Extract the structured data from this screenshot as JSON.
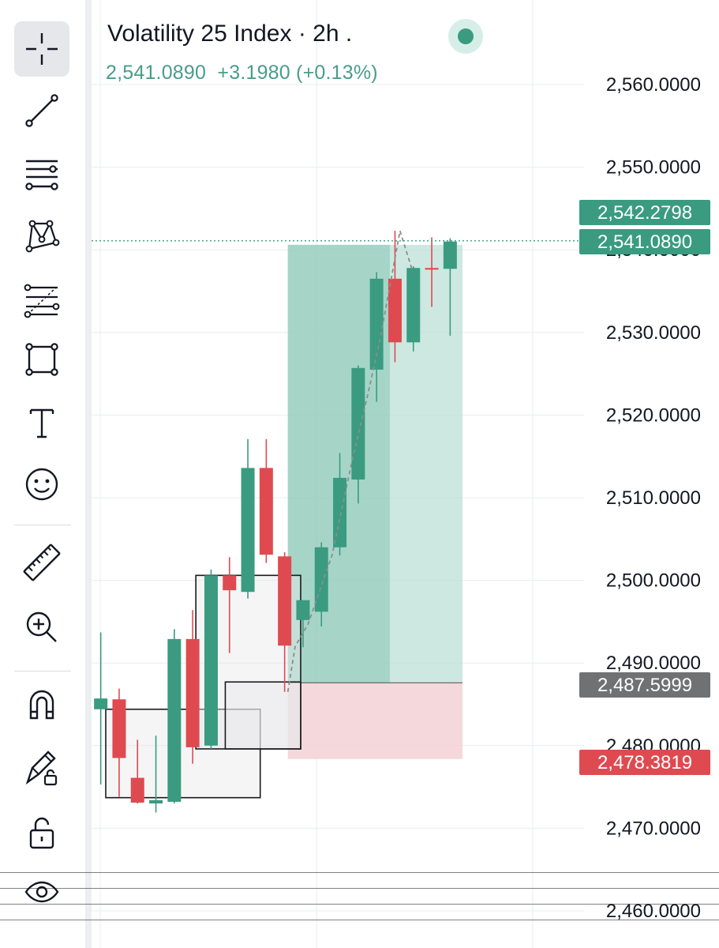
{
  "legend": {
    "symbol": "Volatility 25 Index",
    "interval": "2h",
    "last": "2,541.0890",
    "change": "+3.1980",
    "change_pct": "(+0.13%)"
  },
  "toolbar": {
    "items": [
      {
        "name": "crosshair-icon",
        "active": true
      },
      {
        "name": "trend-line-icon"
      },
      {
        "name": "horizontal-lines-icon"
      },
      {
        "name": "pattern-icon"
      },
      {
        "name": "fib-retracement-icon"
      },
      {
        "name": "rectangle-icon"
      },
      {
        "name": "text-tool-icon"
      },
      {
        "name": "emoji-icon"
      },
      {
        "name": "ruler-icon"
      },
      {
        "name": "zoom-in-icon"
      },
      {
        "name": "magnet-icon"
      },
      {
        "name": "lock-drawings-icon"
      },
      {
        "name": "unlock-icon"
      },
      {
        "name": "eye-icon"
      }
    ]
  },
  "colors": {
    "up": "#3a9b80",
    "down": "#df4a50",
    "target_zone": "#b6ddd3",
    "stop_zone": "#f4d4d7",
    "grid": "#eaecef",
    "last_price_tag": "#3a9b80",
    "entry_tag": "#6f7172",
    "stop_tag": "#df4a50"
  },
  "chart_data": {
    "type": "candlestick",
    "y_axis": {
      "min": 2458.5,
      "max": 2568.5,
      "ticks": [
        "2,560.0000",
        "2,550.0000",
        "2,540.0000",
        "2,530.0000",
        "2,520.0000",
        "2,510.0000",
        "2,500.0000",
        "2,490.0000",
        "2,480.0000",
        "2,470.0000",
        "2,460.0000"
      ],
      "tick_values": [
        2560,
        2550,
        2540,
        2530,
        2520,
        2510,
        2500,
        2490,
        2480,
        2470,
        2460
      ]
    },
    "price_tags": [
      {
        "label": "2,542.2798",
        "value": 2542.2798,
        "kind": "high"
      },
      {
        "label": "2,541.0890",
        "value": 2541.089,
        "kind": "last"
      },
      {
        "label": "2,487.5999",
        "value": 2487.5999,
        "kind": "entry"
      },
      {
        "label": "2,478.3819",
        "value": 2478.3819,
        "kind": "stop"
      }
    ],
    "candles": [
      {
        "o": 2484.4,
        "h": 2493.7,
        "l": 2475.3,
        "c": 2485.7
      },
      {
        "o": 2485.6,
        "h": 2486.9,
        "l": 2473.8,
        "c": 2478.5
      },
      {
        "o": 2476.1,
        "h": 2480.7,
        "l": 2473.0,
        "c": 2473.1
      },
      {
        "o": 2473.0,
        "h": 2481.2,
        "l": 2471.9,
        "c": 2473.4
      },
      {
        "o": 2473.2,
        "h": 2494.1,
        "l": 2473.0,
        "c": 2492.9
      },
      {
        "o": 2492.9,
        "h": 2496.4,
        "l": 2477.8,
        "c": 2479.8
      },
      {
        "o": 2480.0,
        "h": 2501.3,
        "l": 2479.6,
        "c": 2500.6
      },
      {
        "o": 2500.6,
        "h": 2502.8,
        "l": 2491.2,
        "c": 2498.8
      },
      {
        "o": 2498.6,
        "h": 2517.1,
        "l": 2497.8,
        "c": 2513.6
      },
      {
        "o": 2513.6,
        "h": 2517.1,
        "l": 2502.1,
        "c": 2503.1
      },
      {
        "o": 2502.9,
        "h": 2503.4,
        "l": 2486.5,
        "c": 2492.1
      },
      {
        "o": 2495.2,
        "h": 2497.6,
        "l": 2491.9,
        "c": 2497.6
      },
      {
        "o": 2496.2,
        "h": 2504.6,
        "l": 2494.4,
        "c": 2504.0
      },
      {
        "o": 2504.0,
        "h": 2515.4,
        "l": 2503.0,
        "c": 2512.4
      },
      {
        "o": 2512.2,
        "h": 2526.0,
        "l": 2509.3,
        "c": 2525.7
      },
      {
        "o": 2525.5,
        "h": 2537.3,
        "l": 2521.6,
        "c": 2536.5
      },
      {
        "o": 2536.5,
        "h": 2542.3,
        "l": 2526.4,
        "c": 2528.8
      },
      {
        "o": 2528.8,
        "h": 2538.0,
        "l": 2527.7,
        "c": 2537.8
      },
      {
        "o": 2537.8,
        "h": 2541.5,
        "l": 2533.1,
        "c": 2537.6
      },
      {
        "o": 2537.7,
        "h": 2541.4,
        "l": 2529.6,
        "c": 2541.0
      }
    ],
    "position": {
      "entry": 2487.5999,
      "target": 2540.6,
      "stop": 2478.3819,
      "start_index": 10.2,
      "end_index": 19.7,
      "split_index": 15.75
    },
    "boxes": [
      {
        "i0": 0.3,
        "i1": 8.7,
        "top": 2484.4,
        "bottom": 2473.7
      },
      {
        "i0": 5.2,
        "i1": 10.9,
        "top": 2500.6,
        "bottom": 2479.6
      },
      {
        "i0": 6.8,
        "i1": 10.9,
        "top": 2487.7,
        "bottom": 2479.6
      }
    ],
    "path": [
      {
        "i": 10.2,
        "v": 2486.5
      },
      {
        "i": 10.6,
        "v": 2492.0
      },
      {
        "i": 11.3,
        "v": 2494.7
      },
      {
        "i": 12.6,
        "v": 2503.0
      },
      {
        "i": 13.7,
        "v": 2514.5
      },
      {
        "i": 14.5,
        "v": 2522.0
      },
      {
        "i": 15.2,
        "v": 2529.0
      },
      {
        "i": 15.8,
        "v": 2536.2
      },
      {
        "i": 16.3,
        "v": 2542.3
      },
      {
        "i": 17.0,
        "v": 2537.3
      }
    ]
  }
}
